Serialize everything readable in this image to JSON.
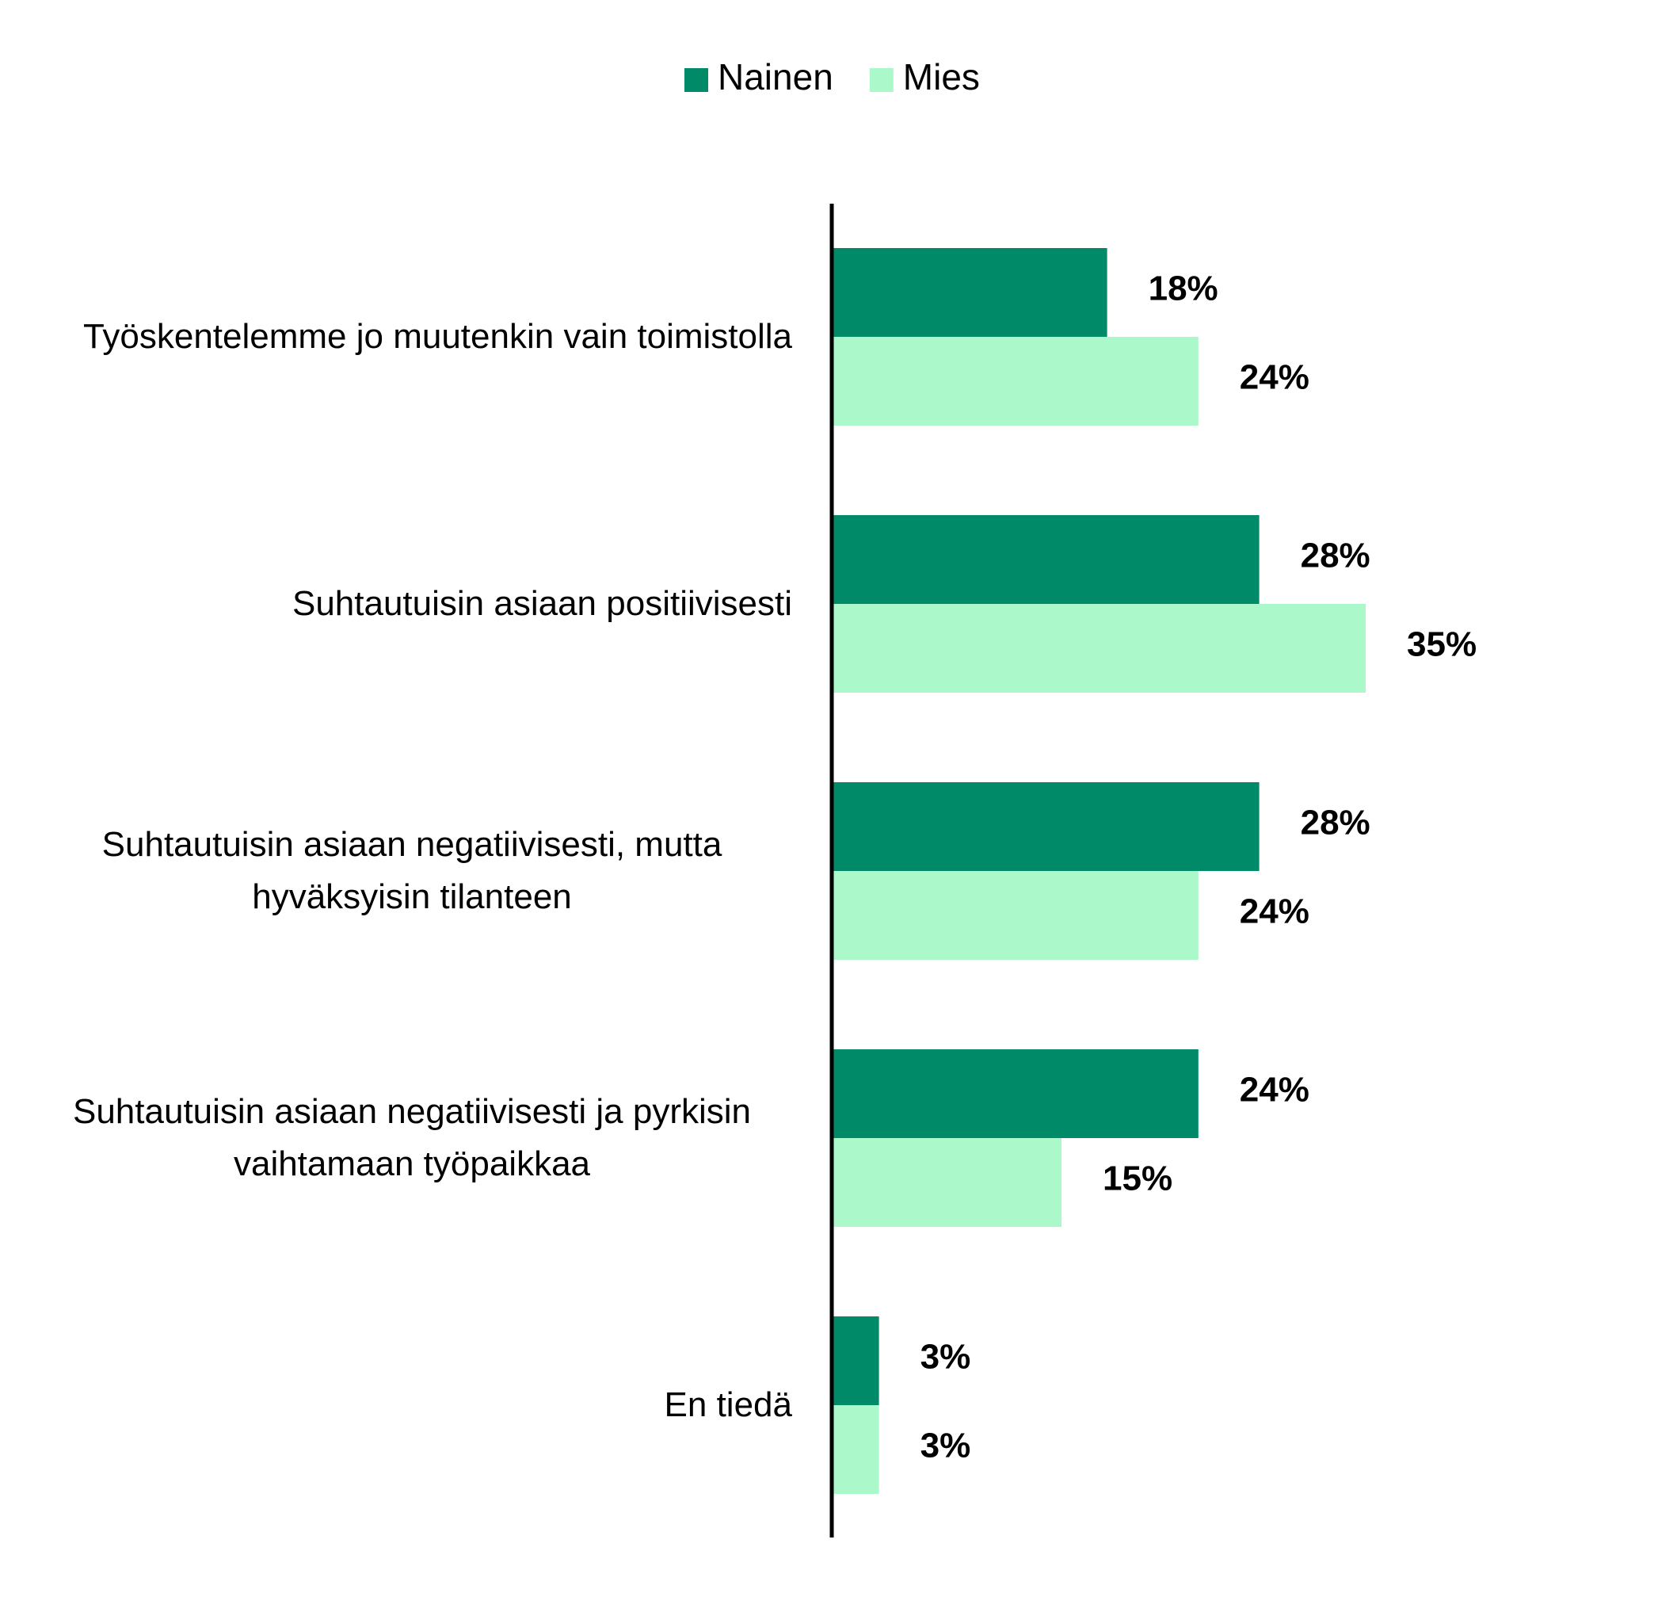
{
  "chart_data": {
    "type": "barh",
    "categories": [
      "Työskentelemme jo muutenkin vain toimistolla",
      "Suhtautuisin asiaan positiivisesti",
      "Suhtautuisin asiaan negatiivisesti, mutta hyväksyisin tilanteen",
      "Suhtautuisin asiaan negatiivisesti ja pyrkisin vaihtamaan työpaikkaa",
      "En tiedä"
    ],
    "series": [
      {
        "name": "Nainen",
        "color": "#008a68",
        "values": [
          18,
          28,
          28,
          24,
          3
        ],
        "value_labels": [
          "18%",
          "28%",
          "28%",
          "24%",
          "3%"
        ]
      },
      {
        "name": "Mies",
        "color": "#abf9cb",
        "values": [
          24,
          35,
          24,
          15,
          3
        ],
        "value_labels": [
          "24%",
          "35%",
          "24%",
          "15%",
          "3%"
        ]
      }
    ],
    "xlim": [
      0,
      55
    ],
    "legend": "top"
  }
}
